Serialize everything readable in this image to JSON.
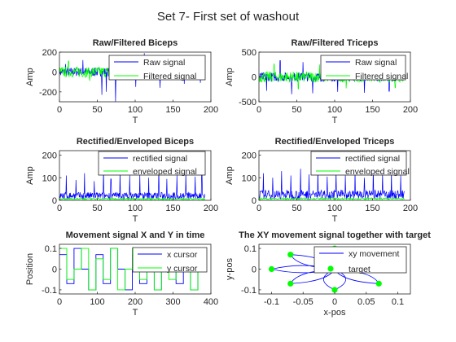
{
  "figure_title": "Set 7- First set of washout",
  "colors": {
    "blue": "#0000ff",
    "green": "#00ff00",
    "axis": "#262626"
  },
  "chart_data": [
    {
      "type": "line",
      "title": "Raw/Filtered Biceps",
      "xlabel": "T",
      "ylabel": "Amp",
      "xlim": [
        0,
        200
      ],
      "ylim": [
        -300,
        200
      ],
      "xticks": [
        0,
        50,
        100,
        150,
        200
      ],
      "yticks": [
        -200,
        0,
        200
      ],
      "legend_position": "top-right",
      "series": [
        {
          "name": "Raw signal",
          "color": "#0000ff",
          "x_range": [
            0,
            192
          ],
          "center": 0,
          "amplitude": 45,
          "spikes": [
            [
              8,
              80
            ],
            [
              31,
              120
            ],
            [
              56,
              -230
            ],
            [
              62,
              -200
            ],
            [
              74,
              -300
            ],
            [
              86,
              140
            ],
            [
              101,
              -150
            ],
            [
              112,
              190
            ],
            [
              133,
              -160
            ],
            [
              147,
              130
            ],
            [
              165,
              -120
            ],
            [
              178,
              100
            ],
            [
              186,
              -110
            ]
          ]
        },
        {
          "name": "Filtered signal",
          "color": "#00ff00",
          "x_range": [
            0,
            192
          ],
          "center": 0,
          "amplitude": 55,
          "spikes": [
            [
              12,
              110
            ],
            [
              40,
              -90
            ],
            [
              66,
              100
            ],
            [
              95,
              -80
            ],
            [
              120,
              90
            ],
            [
              152,
              -70
            ],
            [
              181,
              80
            ]
          ]
        }
      ]
    },
    {
      "type": "line",
      "title": "Raw/Filtered Triceps",
      "xlabel": "T",
      "ylabel": "Amp",
      "xlim": [
        0,
        200
      ],
      "ylim": [
        -500,
        500
      ],
      "xticks": [
        0,
        50,
        100,
        150,
        200
      ],
      "yticks": [
        -500,
        0,
        500
      ],
      "legend_position": "top-right",
      "series": [
        {
          "name": "Raw signal",
          "color": "#0000ff",
          "x_range": [
            0,
            192
          ],
          "center": 0,
          "amplitude": 90,
          "spikes": [
            [
              10,
              -280
            ],
            [
              28,
              330
            ],
            [
              43,
              -350
            ],
            [
              58,
              300
            ],
            [
              71,
              -330
            ],
            [
              88,
              360
            ],
            [
              104,
              -300
            ],
            [
              121,
              340
            ],
            [
              139,
              -320
            ],
            [
              156,
              300
            ],
            [
              172,
              -290
            ],
            [
              188,
              280
            ]
          ]
        },
        {
          "name": "Filtered signal",
          "color": "#00ff00",
          "x_range": [
            0,
            192
          ],
          "center": 0,
          "amplitude": 110,
          "spikes": [
            [
              20,
              260
            ],
            [
              52,
              -240
            ],
            [
              80,
              250
            ],
            [
              115,
              -230
            ],
            [
              148,
              240
            ],
            [
              180,
              -220
            ]
          ]
        }
      ]
    },
    {
      "type": "line",
      "title": "Rectified/Enveloped Biceps",
      "xlabel": "T",
      "ylabel": "Amp",
      "xlim": [
        0,
        200
      ],
      "ylim": [
        0,
        220
      ],
      "xticks": [
        0,
        50,
        100,
        150,
        200
      ],
      "yticks": [
        0,
        100,
        200
      ],
      "legend_position": "top-right",
      "series": [
        {
          "name": "rectified signal",
          "color": "#0000ff",
          "x_range": [
            0,
            192
          ],
          "center": 25,
          "amplitude": 22,
          "spikes": [
            [
              9,
              110
            ],
            [
              22,
              90
            ],
            [
              33,
              120
            ],
            [
              46,
              85
            ],
            [
              58,
              140
            ],
            [
              68,
              95
            ],
            [
              80,
              125
            ],
            [
              93,
              110
            ],
            [
              106,
              115
            ],
            [
              118,
              100
            ],
            [
              131,
              150
            ],
            [
              142,
              95
            ],
            [
              155,
              110
            ],
            [
              167,
              120
            ],
            [
              179,
              105
            ],
            [
              188,
              115
            ]
          ]
        },
        {
          "name": "enveloped signal",
          "color": "#00ff00",
          "x_range": [
            0,
            192
          ],
          "center": 10,
          "amplitude": 6,
          "spikes": []
        }
      ]
    },
    {
      "type": "line",
      "title": "Rectified/Enveloped Triceps",
      "xlabel": "T",
      "ylabel": "Amp",
      "xlim": [
        0,
        200
      ],
      "ylim": [
        0,
        220
      ],
      "xticks": [
        0,
        50,
        100,
        150,
        200
      ],
      "yticks": [
        0,
        100,
        200
      ],
      "legend_position": "top-right",
      "series": [
        {
          "name": "rectified signal",
          "color": "#0000ff",
          "x_range": [
            0,
            192
          ],
          "center": 30,
          "amplitude": 28,
          "spikes": [
            [
              6,
              120
            ],
            [
              18,
              100
            ],
            [
              30,
              130
            ],
            [
              42,
              110
            ],
            [
              55,
              140
            ],
            [
              66,
              115
            ],
            [
              78,
              150
            ],
            [
              90,
              105
            ],
            [
              102,
              125
            ],
            [
              114,
              110
            ],
            [
              127,
              135
            ],
            [
              139,
              100
            ],
            [
              151,
              140
            ],
            [
              163,
              115
            ],
            [
              175,
              125
            ],
            [
              187,
              110
            ]
          ]
        },
        {
          "name": "enveloped signal",
          "color": "#00ff00",
          "x_range": [
            0,
            192
          ],
          "center": 15,
          "amplitude": 6,
          "spikes": []
        }
      ]
    },
    {
      "type": "line",
      "title": "Movement signal X and Y in time",
      "xlabel": "T",
      "ylabel": "Position",
      "xlim": [
        0,
        400
      ],
      "ylim": [
        -0.12,
        0.12
      ],
      "xticks": [
        0,
        100,
        200,
        300,
        400
      ],
      "yticks": [
        -0.1,
        0,
        0.1
      ],
      "legend_position": "top-right",
      "series": [
        {
          "name": "x cursor",
          "color": "#0000ff",
          "x_range": [
            0,
            385
          ],
          "levels": [
            0.07,
            -0.07,
            0.1,
            0,
            -0.1,
            0.07,
            -0.07,
            0.1,
            0,
            -0.1,
            0.07,
            -0.07,
            0.1,
            -0.1,
            0.07,
            0,
            -0.07,
            0.1,
            -0.1,
            0.07
          ]
        },
        {
          "name": "y cursor",
          "color": "#00ff00",
          "x_range": [
            0,
            385
          ],
          "levels": [
            0.1,
            -0.05,
            0,
            0.1,
            -0.1,
            0.05,
            -0.05,
            0.1,
            -0.1,
            0,
            0.1,
            -0.05,
            0.05,
            -0.1,
            0.1,
            -0.05,
            0,
            0.1,
            -0.1,
            0.05
          ]
        }
      ]
    },
    {
      "type": "scatter",
      "title": "The XY movement signal together with target",
      "xlabel": "x-pos",
      "ylabel": "y-pos",
      "xlim": [
        -0.12,
        0.12
      ],
      "ylim": [
        -0.12,
        0.12
      ],
      "xticks": [
        -0.1,
        -0.05,
        0,
        0.05,
        0.1
      ],
      "yticks": [
        -0.1,
        0,
        0.1
      ],
      "legend_position": "top-right",
      "series": [
        {
          "name": "xy movement",
          "color": "#0000ff",
          "type": "line",
          "targets_visited": [
            [
              0,
              0
            ],
            [
              -0.07,
              0.07
            ],
            [
              0,
              0
            ],
            [
              0,
              0.1
            ],
            [
              0,
              0
            ],
            [
              0.07,
              -0.07
            ],
            [
              0,
              0
            ],
            [
              -0.1,
              0
            ],
            [
              0,
              0
            ],
            [
              -0.07,
              -0.07
            ],
            [
              0,
              0
            ],
            [
              0,
              -0.1
            ],
            [
              0,
              0
            ],
            [
              0.07,
              0.07
            ],
            [
              0,
              0
            ]
          ]
        },
        {
          "name": "target",
          "color": "#00ff00",
          "type": "scatter",
          "x": [
            -0.07,
            0,
            0.07,
            -0.1,
            0,
            -0.07,
            0,
            0.07
          ],
          "y": [
            0.07,
            0.1,
            0.07,
            0,
            0,
            -0.07,
            -0.1,
            -0.07
          ]
        }
      ]
    }
  ]
}
